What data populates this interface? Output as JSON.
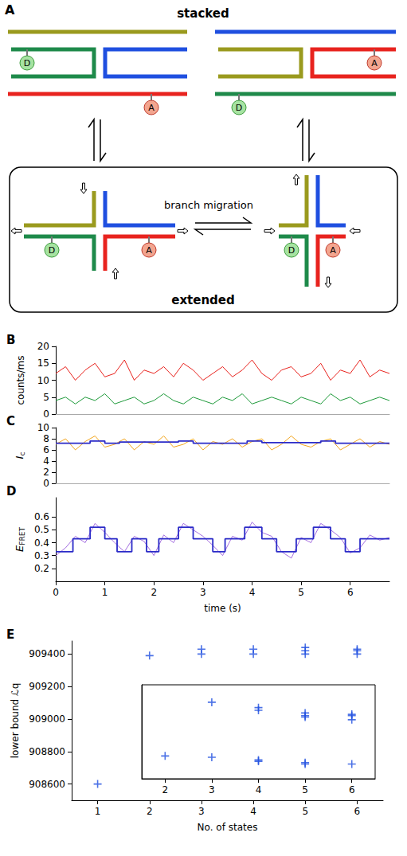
{
  "diagram_A": {
    "panel": "A",
    "top_label": "stacked",
    "bottom_label": "extended",
    "arrow_label": "branch migration",
    "donor": "D",
    "acceptor": "A"
  },
  "chart_data": [
    {
      "panel": "B",
      "type": "line",
      "ylabel": "counts/ms",
      "tick_labels": "y",
      "x": [
        0,
        0.2,
        0.4,
        0.6,
        0.8,
        1,
        1.2,
        1.4,
        1.6,
        1.8,
        2,
        2.2,
        2.4,
        2.6,
        2.8,
        3,
        3.2,
        3.4,
        3.6,
        3.8,
        4,
        4.2,
        4.4,
        4.6,
        4.8,
        5,
        5.2,
        5.4,
        5.6,
        5.8,
        6,
        6.2,
        6.4,
        6.6,
        6.8
      ],
      "series": [
        {
          "color": "#e8231e",
          "values": [
            12,
            14,
            10,
            13,
            15,
            11,
            12,
            16,
            10,
            13,
            12,
            14,
            11,
            15,
            13,
            10,
            12,
            14,
            11,
            13,
            16,
            12,
            10,
            13,
            14,
            11,
            12,
            15,
            10,
            13,
            12,
            16,
            11,
            13,
            12
          ]
        },
        {
          "color": "#1e9a3a",
          "values": [
            4,
            5,
            3,
            5,
            4,
            6,
            3,
            4,
            5,
            3,
            4,
            6,
            4,
            3,
            5,
            4,
            3,
            5,
            4,
            6,
            3,
            4,
            5,
            4,
            3,
            5,
            4,
            3,
            6,
            4,
            5,
            3,
            4,
            5,
            4
          ]
        }
      ],
      "xlim": [
        0,
        6.8
      ],
      "ylim": [
        0,
        20
      ],
      "yticks": [
        0,
        5,
        10,
        15,
        20
      ]
    },
    {
      "panel": "C",
      "type": "line",
      "ylabel": "Ic",
      "tick_labels": "y",
      "x": [
        0,
        0.2,
        0.4,
        0.6,
        0.8,
        1,
        1.2,
        1.4,
        1.6,
        1.8,
        2,
        2.2,
        2.4,
        2.6,
        2.8,
        3,
        3.2,
        3.4,
        3.6,
        3.8,
        4,
        4.2,
        4.4,
        4.6,
        4.8,
        5,
        5.2,
        5.4,
        5.6,
        5.8,
        6,
        6.2,
        6.4,
        6.6,
        6.8
      ],
      "series": [
        {
          "color": "#f2a51e",
          "values": [
            7,
            8,
            6,
            7.5,
            8.5,
            6.5,
            7,
            8,
            6,
            7.5,
            7,
            8.5,
            6.5,
            7,
            8,
            6,
            7.5,
            7,
            8,
            6.5,
            7.5,
            8,
            6,
            7,
            8.5,
            7,
            6.5,
            7.5,
            8,
            6,
            7,
            8,
            6.5,
            7.5,
            7
          ]
        },
        {
          "color": "#2b2bc8",
          "line_style": "step",
          "x": [
            0,
            0.7,
            1.0,
            1.3,
            2.5,
            2.8,
            3.9,
            4.2,
            5.4,
            5.7,
            6.8
          ],
          "values": [
            7.2,
            7.6,
            7.2,
            7.4,
            7.6,
            7.2,
            7.6,
            7.3,
            7.6,
            7.2,
            7.2
          ]
        }
      ],
      "xlim": [
        0,
        6.8
      ],
      "ylim": [
        0,
        10
      ],
      "yticks": [
        0,
        2,
        4,
        6,
        8,
        10
      ]
    },
    {
      "panel": "D",
      "type": "line",
      "ylabel": "EFRET",
      "xlabel": "time (s)",
      "tick_labels": true,
      "x": [
        0,
        0.2,
        0.4,
        0.6,
        0.8,
        1,
        1.2,
        1.4,
        1.6,
        1.8,
        2,
        2.2,
        2.4,
        2.6,
        2.8,
        3,
        3.2,
        3.4,
        3.6,
        3.8,
        4,
        4.2,
        4.4,
        4.6,
        4.8,
        5,
        5.2,
        5.4,
        5.6,
        5.8,
        6,
        6.2,
        6.4,
        6.6,
        6.8
      ],
      "series": [
        {
          "color": "#a36ee0",
          "values": [
            0.3,
            0.36,
            0.45,
            0.4,
            0.55,
            0.48,
            0.4,
            0.33,
            0.45,
            0.41,
            0.3,
            0.46,
            0.4,
            0.55,
            0.5,
            0.45,
            0.38,
            0.3,
            0.45,
            0.42,
            0.56,
            0.48,
            0.45,
            0.33,
            0.28,
            0.44,
            0.4,
            0.55,
            0.5,
            0.44,
            0.32,
            0.36,
            0.46,
            0.42,
            0.44
          ]
        },
        {
          "color": "#2b2bc8",
          "line_style": "step",
          "x": [
            0,
            0.35,
            0.7,
            1.0,
            1.25,
            1.55,
            1.85,
            2.1,
            2.5,
            2.8,
            3.2,
            3.45,
            3.85,
            4.2,
            4.5,
            4.9,
            5.25,
            5.6,
            5.9,
            6.2,
            6.8
          ],
          "values": [
            0.33,
            0.43,
            0.52,
            0.43,
            0.33,
            0.43,
            0.33,
            0.43,
            0.52,
            0.43,
            0.33,
            0.43,
            0.52,
            0.43,
            0.33,
            0.43,
            0.52,
            0.43,
            0.33,
            0.43,
            0.43
          ]
        }
      ],
      "xlim": [
        0,
        6.8
      ],
      "xticks": [
        0,
        1,
        2,
        3,
        4,
        5,
        6
      ],
      "ylim": [
        0.1,
        0.75
      ],
      "yticks": [
        0.2,
        0.3,
        0.4,
        0.5,
        0.6
      ]
    },
    {
      "panel": "E",
      "type": "scatter",
      "xlabel": "No. of states",
      "ylabel": "lower bound ℒq",
      "tick_labels": true,
      "series": [
        {
          "color": "#1f4fe0",
          "marker": "plus",
          "x": [
            1,
            2,
            3,
            3,
            4,
            4,
            5,
            5,
            5,
            6,
            6,
            6
          ],
          "values": [
            908600,
            909390,
            909400,
            909430,
            909400,
            909430,
            909400,
            909420,
            909440,
            909400,
            909420,
            909430
          ]
        }
      ],
      "xlim": [
        0.5,
        6.5
      ],
      "xticks": [
        1,
        2,
        3,
        4,
        5,
        6
      ],
      "ylim": [
        908500,
        909480
      ],
      "yticks": [
        908600,
        908800,
        909000,
        909200,
        909400
      ],
      "inset": {
        "type": "scatter",
        "tick_labels": "x",
        "series": [
          {
            "color": "#1f4fe0",
            "marker": "plus",
            "x": [
              2,
              3,
              3,
              4,
              4,
              4,
              4,
              5,
              5,
              5,
              5,
              5,
              6,
              6,
              6,
              6
            ],
            "values": [
              909392,
              909432,
              909391,
              909428,
              909426,
              909389,
              909388,
              909424,
              909422,
              909421,
              909387,
              909386,
              909423,
              909422,
              909419,
              909386
            ]
          }
        ],
        "xlim": [
          1.5,
          6.5
        ],
        "xticks": [
          2,
          3,
          4,
          5,
          6
        ],
        "ylim": [
          909375,
          909445
        ]
      }
    }
  ]
}
